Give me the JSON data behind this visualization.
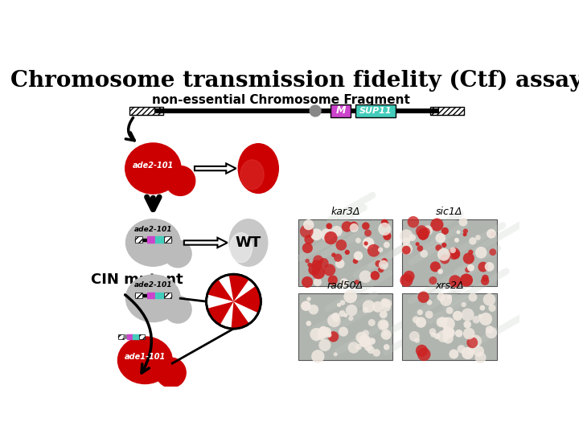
{
  "title": "Chromosome transmission fidelity (Ctf) assay",
  "subtitle": "non-essential Chromosome Fragment",
  "marker_M": "M",
  "marker_SUP11": "SUP11",
  "label_ade2_101": "ade2-101",
  "label_ade1_101": "ade1-101",
  "label_WT": "WT",
  "label_CIN": "CIN mutant",
  "label_kar3": "kar3Δ",
  "label_sic1": "sic1Δ",
  "label_rad50": "rad50Δ",
  "label_xrs2": "xrs2Δ",
  "bg_color": "#ffffff",
  "title_fontsize": 20,
  "subtitle_fontsize": 11,
  "red_color": "#cc0000",
  "magenta_color": "#cc44cc",
  "cyan_color": "#44ccbb",
  "gray_color": "#bbbbbb",
  "dark_gray": "#888888"
}
